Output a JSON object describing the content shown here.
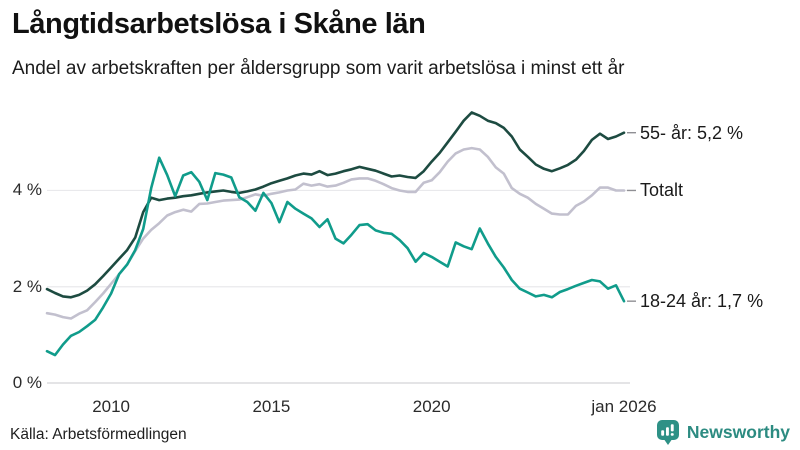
{
  "header": {
    "title": "Långtidsarbetslösa i Skåne län",
    "subtitle": "Andel av arbetskraften per åldersgrupp som varit arbetslösa i minst ett år"
  },
  "chart_data": {
    "type": "line",
    "title": "Långtidsarbetslösa i Skåne län",
    "subtitle": "Andel av arbetskraften per åldersgrupp som varit arbetslösa i minst ett år",
    "xlabel": "",
    "ylabel": "",
    "grid": true,
    "legend_position": "right-end-labels",
    "x_range": [
      2008,
      2026
    ],
    "ylim": [
      0,
      5.9
    ],
    "x_start": 2008,
    "x_step": 0.25,
    "y_ticks": [
      {
        "label": "0 %",
        "value": 0
      },
      {
        "label": "2 %",
        "value": 2
      },
      {
        "label": "4 %",
        "value": 4
      }
    ],
    "x_ticks": [
      {
        "label": "2010",
        "value": 2010
      },
      {
        "label": "2015",
        "value": 2015
      },
      {
        "label": "2020",
        "value": 2020
      },
      {
        "label": "jan 2026",
        "value": 2026
      }
    ],
    "colors": {
      "grid": "#e9e9ec",
      "baseline": "#d4d4d8",
      "connector": "#8f8f94"
    },
    "series": [
      {
        "name": "55- år",
        "end_label": "55- år: 5,2 %",
        "end_value": "5,2 %",
        "color": "#1d4b41",
        "values": [
          1.95,
          1.87,
          1.8,
          1.78,
          1.83,
          1.92,
          2.05,
          2.22,
          2.4,
          2.58,
          2.76,
          3.02,
          3.55,
          3.85,
          3.8,
          3.83,
          3.85,
          3.88,
          3.9,
          3.93,
          3.96,
          3.98,
          4.0,
          3.97,
          3.95,
          3.98,
          4.02,
          4.08,
          4.15,
          4.2,
          4.25,
          4.31,
          4.35,
          4.33,
          4.4,
          4.32,
          4.35,
          4.4,
          4.44,
          4.49,
          4.45,
          4.41,
          4.35,
          4.29,
          4.31,
          4.28,
          4.26,
          4.4,
          4.6,
          4.78,
          5.0,
          5.22,
          5.45,
          5.62,
          5.55,
          5.45,
          5.4,
          5.3,
          5.12,
          4.85,
          4.7,
          4.54,
          4.45,
          4.4,
          4.46,
          4.53,
          4.64,
          4.82,
          5.05,
          5.18,
          5.07,
          5.12,
          5.2
        ]
      },
      {
        "name": "Totalt",
        "end_label": "Totalt",
        "end_value": "4,0 %",
        "color": "#c2c0ce",
        "values": [
          1.45,
          1.42,
          1.37,
          1.34,
          1.44,
          1.51,
          1.68,
          1.86,
          2.06,
          2.26,
          2.46,
          2.74,
          3.0,
          3.18,
          3.32,
          3.48,
          3.55,
          3.6,
          3.56,
          3.72,
          3.73,
          3.76,
          3.79,
          3.8,
          3.81,
          3.86,
          3.92,
          3.89,
          3.93,
          3.96,
          4.0,
          4.02,
          4.14,
          4.1,
          4.13,
          4.08,
          4.1,
          4.16,
          4.23,
          4.25,
          4.25,
          4.2,
          4.13,
          4.05,
          4.0,
          3.97,
          3.97,
          4.16,
          4.21,
          4.38,
          4.6,
          4.77,
          4.85,
          4.88,
          4.85,
          4.7,
          4.48,
          4.35,
          4.05,
          3.93,
          3.85,
          3.72,
          3.62,
          3.52,
          3.5,
          3.5,
          3.68,
          3.77,
          3.9,
          4.06,
          4.06,
          4.0,
          4.0
        ]
      },
      {
        "name": "18-24 år",
        "end_label": "18-24 år: 1,7 %",
        "end_value": "1,7 %",
        "color": "#109c8b",
        "values": [
          0.66,
          0.58,
          0.8,
          0.98,
          1.06,
          1.18,
          1.31,
          1.57,
          1.86,
          2.26,
          2.46,
          2.76,
          3.2,
          4.05,
          4.68,
          4.32,
          3.88,
          4.31,
          4.38,
          4.18,
          3.8,
          4.36,
          4.33,
          4.27,
          3.86,
          3.76,
          3.58,
          3.95,
          3.74,
          3.34,
          3.76,
          3.62,
          3.52,
          3.42,
          3.24,
          3.4,
          3.0,
          2.9,
          3.08,
          3.28,
          3.3,
          3.17,
          3.12,
          3.1,
          2.97,
          2.8,
          2.52,
          2.7,
          2.62,
          2.52,
          2.42,
          2.92,
          2.84,
          2.78,
          3.21,
          2.9,
          2.62,
          2.4,
          2.14,
          1.96,
          1.88,
          1.8,
          1.83,
          1.78,
          1.89,
          1.95,
          2.02,
          2.08,
          2.14,
          2.11,
          1.96,
          2.03,
          1.7
        ]
      }
    ]
  },
  "footer": {
    "source": "Källa: Arbetsförmedlingen",
    "brand": "Newsworthy",
    "brand_icon": "bar-chart-speech-bubble-icon",
    "brand_color": "#2c8b81",
    "brand_icon_color": "#2e9186"
  }
}
